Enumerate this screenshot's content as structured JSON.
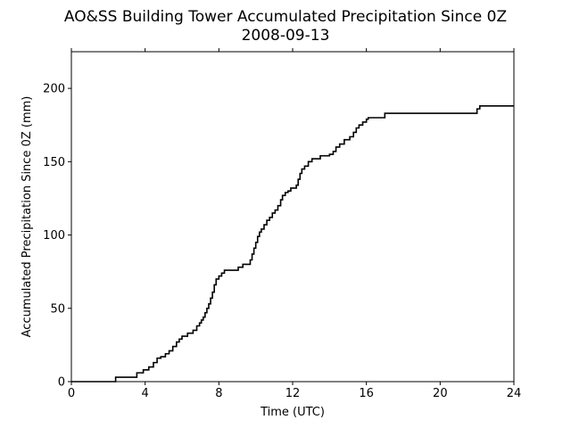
{
  "chart_data": {
    "type": "line",
    "title": "AO&SS Building Tower Accumulated Precipitation Since 0Z",
    "subtitle": "2008-09-13",
    "xlabel": "Time (UTC)",
    "ylabel": "Accumulated Precipitation Since 0Z (mm)",
    "xlim": [
      0,
      24
    ],
    "ylim": [
      0,
      225
    ],
    "xticks": [
      0,
      4,
      8,
      12,
      16,
      20,
      24
    ],
    "yticks": [
      0,
      50,
      100,
      150,
      200
    ],
    "grid": false,
    "line_color": "#000000",
    "series": [
      {
        "x": [
          0,
          2.4,
          3.55,
          3.9,
          4.2,
          4.45,
          4.65,
          4.85,
          5.1,
          5.3,
          5.5,
          5.7,
          5.85,
          6.0,
          6.3,
          6.6,
          6.8,
          6.95,
          7.05,
          7.15,
          7.25,
          7.35,
          7.45,
          7.55,
          7.65,
          7.75,
          7.85,
          8.0,
          8.15,
          8.3,
          9.05,
          9.3,
          9.7,
          9.8,
          9.9,
          10.0,
          10.1,
          10.2,
          10.3,
          10.45,
          10.6,
          10.75,
          10.9,
          11.05,
          11.2,
          11.35,
          11.45,
          11.6,
          11.75,
          11.9,
          12.2,
          12.3,
          12.4,
          12.5,
          12.65,
          12.85,
          13.05,
          13.5,
          14.0,
          14.2,
          14.35,
          14.55,
          14.8,
          15.1,
          15.3,
          15.45,
          15.6,
          15.8,
          16.0,
          16.1,
          16.9,
          17.0,
          21.9,
          22.0,
          22.15,
          24.0
        ],
        "y": [
          0,
          3,
          6,
          8,
          10,
          13,
          16,
          17,
          19,
          21,
          24,
          27,
          29,
          31,
          33,
          35,
          38,
          40,
          42,
          44,
          47,
          50,
          53,
          57,
          61,
          66,
          70,
          72,
          74,
          76,
          78,
          80,
          83,
          87,
          91,
          95,
          99,
          102,
          104,
          107,
          110,
          112,
          115,
          117,
          120,
          124,
          127,
          129,
          130,
          132,
          134,
          138,
          142,
          145,
          147,
          150,
          152,
          154,
          155,
          157,
          160,
          162,
          165,
          167,
          170,
          173,
          175,
          177,
          179,
          180,
          180,
          183,
          183,
          186,
          188,
          188
        ]
      }
    ]
  }
}
